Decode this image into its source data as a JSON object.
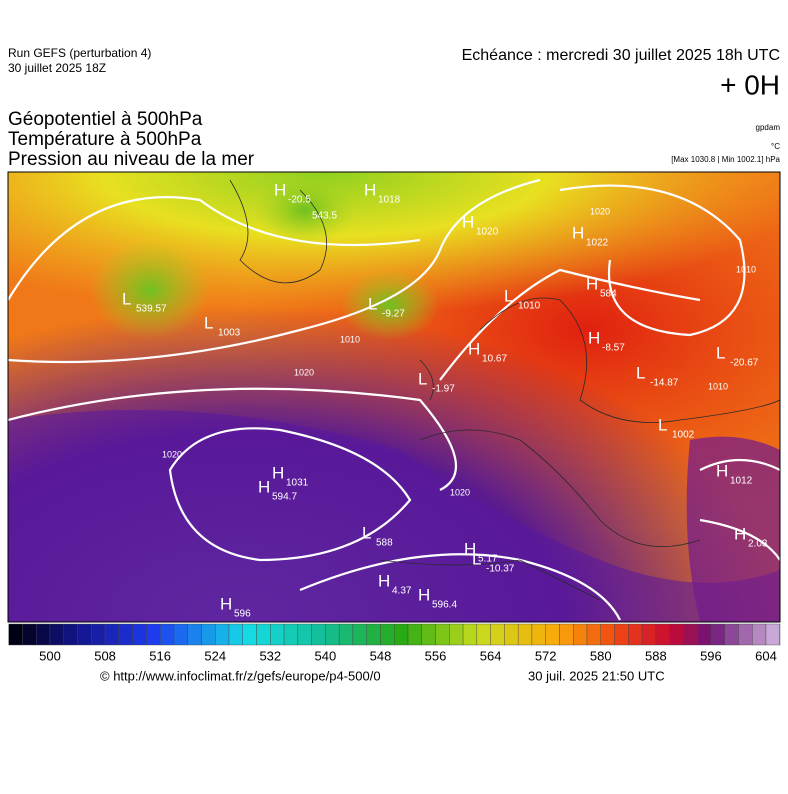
{
  "header": {
    "run": "Run GEFS (perturbation 4)",
    "run_date": "30 juillet 2025 18Z",
    "echeance": "Echéance : mercredi 30 juillet 2025 18h UTC",
    "lead": "+ 0H"
  },
  "fields": [
    "Géopotentiel à 500hPa",
    "Température à 500hPa",
    "Pression au niveau de la mer"
  ],
  "units": {
    "geopotential": "gpdam",
    "temperature": "°C",
    "pressure": "[Max 1030.8 | Min 1002.1] hPa"
  },
  "map_labels": [
    {
      "symbol": "H",
      "label": "-20.5"
    },
    {
      "symbol": "",
      "label": "543.5"
    },
    {
      "symbol": "H",
      "label": "1018"
    },
    {
      "symbol": "H",
      "label": "1020"
    },
    {
      "symbol": "H",
      "label": "1022"
    },
    {
      "symbol": "L",
      "label": "1010"
    },
    {
      "symbol": "H",
      "label": "584"
    },
    {
      "symbol": "H",
      "label": "-8.57"
    },
    {
      "symbol": "L",
      "label": "-20.67"
    },
    {
      "symbol": "L",
      "label": "-14.87"
    },
    {
      "symbol": "L",
      "label": "1002"
    },
    {
      "symbol": "H",
      "label": "1012"
    },
    {
      "symbol": "H",
      "label": "2.03"
    },
    {
      "symbol": "H",
      "label": "10.67"
    },
    {
      "symbol": "L",
      "label": "-1.97"
    },
    {
      "symbol": "L",
      "label": "1003"
    },
    {
      "symbol": "L",
      "label": "539.57"
    },
    {
      "symbol": "H",
      "label": "1031"
    },
    {
      "symbol": "H",
      "label": "594.7"
    },
    {
      "symbol": "L",
      "label": "588"
    },
    {
      "symbol": "L",
      "label": "-10.37"
    },
    {
      "symbol": "H",
      "label": "5.17"
    },
    {
      "symbol": "H",
      "label": "4.37"
    },
    {
      "symbol": "H",
      "label": "596.4"
    },
    {
      "symbol": "H",
      "label": "596"
    },
    {
      "symbol": "L",
      "label": "-9.27"
    }
  ],
  "contour_labels": [
    "1020",
    "1010",
    "1020",
    "1020",
    "1010",
    "1010",
    "1020"
  ],
  "colorbar": {
    "labels": [
      500,
      508,
      516,
      524,
      532,
      540,
      548,
      556,
      564,
      572,
      580,
      588,
      596,
      604
    ]
  },
  "footer": {
    "source": "© http://www.infoclimat.fr/z/gefs/europe/p4-500/0",
    "generated": "30 juil. 2025 21:50 UTC"
  }
}
